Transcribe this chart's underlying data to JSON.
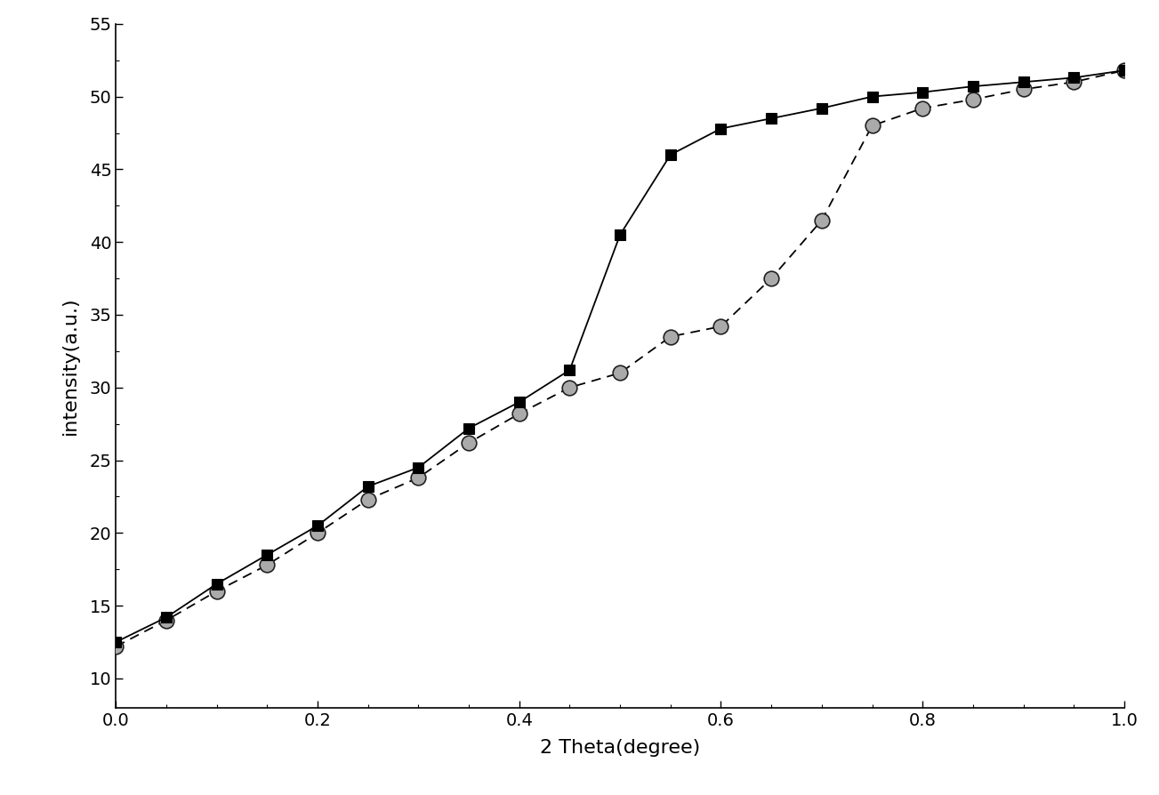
{
  "series1_x": [
    0.0,
    0.05,
    0.1,
    0.15,
    0.2,
    0.25,
    0.3,
    0.35,
    0.4,
    0.45,
    0.5,
    0.55,
    0.6,
    0.65,
    0.7,
    0.75,
    0.8,
    0.85,
    0.9,
    0.95,
    1.0
  ],
  "series1_y": [
    12.5,
    14.2,
    16.5,
    18.5,
    20.5,
    23.2,
    24.5,
    27.2,
    29.0,
    31.2,
    40.5,
    46.0,
    47.8,
    48.5,
    49.2,
    50.0,
    50.3,
    50.7,
    51.0,
    51.3,
    51.8
  ],
  "series2_x": [
    0.0,
    0.05,
    0.1,
    0.15,
    0.2,
    0.25,
    0.3,
    0.35,
    0.4,
    0.45,
    0.5,
    0.55,
    0.6,
    0.65,
    0.7,
    0.75,
    0.8,
    0.85,
    0.9,
    0.95,
    1.0
  ],
  "series2_y": [
    12.2,
    14.0,
    16.0,
    17.8,
    20.0,
    22.3,
    23.8,
    26.2,
    28.2,
    30.0,
    31.0,
    33.5,
    34.2,
    37.5,
    41.5,
    48.0,
    49.2,
    49.8,
    50.5,
    51.0,
    51.8
  ],
  "xlabel": "2 Theta(degree)",
  "ylabel": "intensity(a.u.)",
  "xlim": [
    0.0,
    1.0
  ],
  "ylim": [
    8,
    55
  ],
  "yticks": [
    10,
    15,
    20,
    25,
    30,
    35,
    40,
    45,
    50,
    55
  ],
  "xticks": [
    0.0,
    0.2,
    0.4,
    0.6,
    0.8,
    1.0
  ],
  "background_color": "#ffffff",
  "xlabel_fontsize": 16,
  "ylabel_fontsize": 16,
  "tick_fontsize": 14,
  "marker_size_s": 9,
  "marker_size_o": 12,
  "linewidth": 1.3
}
